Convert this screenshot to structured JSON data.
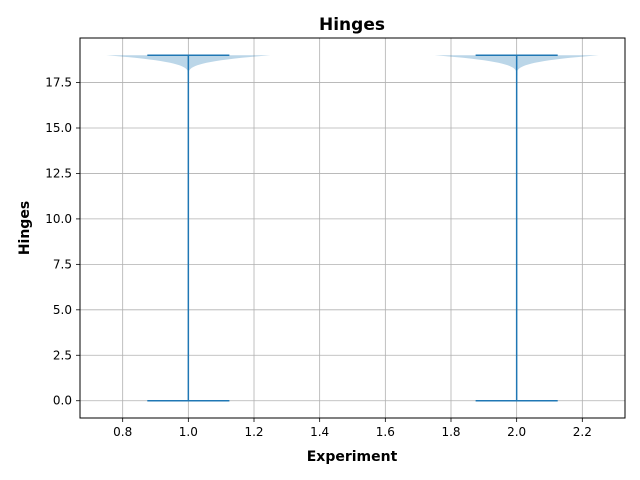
{
  "chart_data": {
    "type": "violin",
    "title": "Hinges",
    "xlabel": "Experiment",
    "ylabel": "Hinges",
    "xlim": [
      0.67,
      2.33
    ],
    "ylim": [
      -0.95,
      19.95
    ],
    "xticks": [
      0.8,
      1.0,
      1.2,
      1.4,
      1.6,
      1.8,
      2.0,
      2.2
    ],
    "xtick_labels": [
      "0.8",
      "1.0",
      "1.2",
      "1.4",
      "1.6",
      "1.8",
      "2.0",
      "2.2"
    ],
    "yticks": [
      0.0,
      2.5,
      5.0,
      7.5,
      10.0,
      12.5,
      15.0,
      17.5
    ],
    "ytick_labels": [
      "0.0",
      "2.5",
      "5.0",
      "7.5",
      "10.0",
      "12.5",
      "15.0",
      "17.5"
    ],
    "grid": true,
    "violins": [
      {
        "position": 1.0,
        "min": 0.0,
        "max": 19.0,
        "mode": 19.0,
        "max_halfwidth": 0.25
      },
      {
        "position": 2.0,
        "min": 0.0,
        "max": 19.0,
        "mode": 19.0,
        "max_halfwidth": 0.25
      }
    ],
    "colors": {
      "body": "#1f77b4",
      "line": "#1f77b4",
      "grid": "#b0b0b0"
    }
  }
}
